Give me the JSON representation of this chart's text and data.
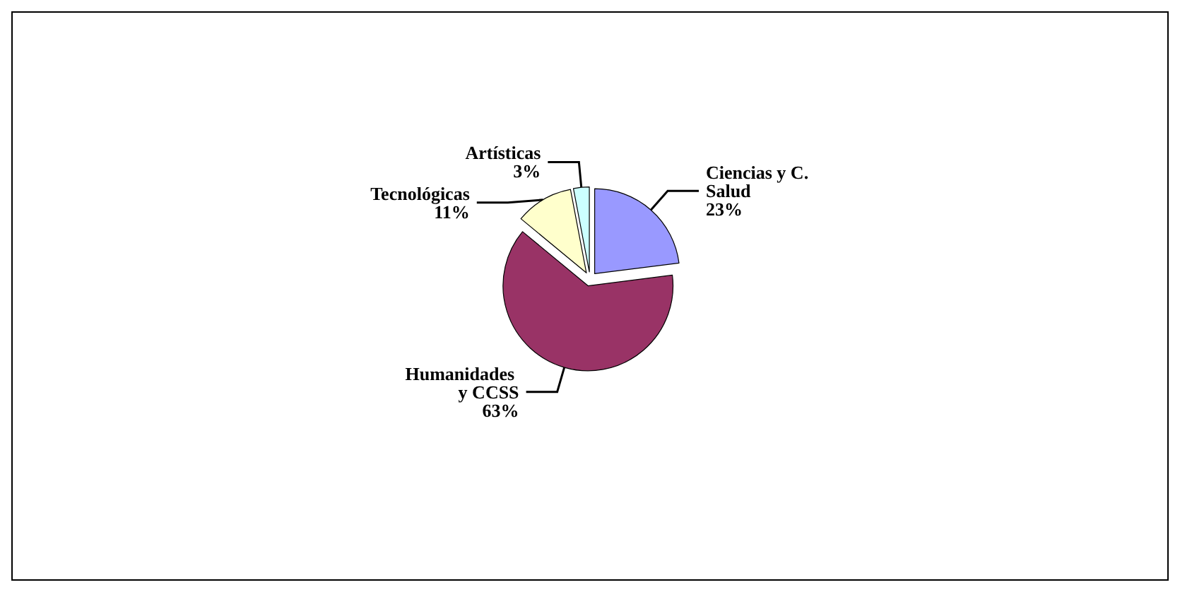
{
  "chart_data": {
    "type": "pie",
    "categories": [
      "Ciencias y C. Salud",
      "Humanidades y CCSS",
      "Tecnológicas",
      "Artísticas"
    ],
    "values": [
      23,
      63,
      11,
      3
    ],
    "value_labels": [
      "23%",
      "63%",
      "11%",
      "3%"
    ],
    "colors": [
      "#9999ff",
      "#993366",
      "#ffffcc",
      "#ccffff"
    ],
    "legend": false
  }
}
